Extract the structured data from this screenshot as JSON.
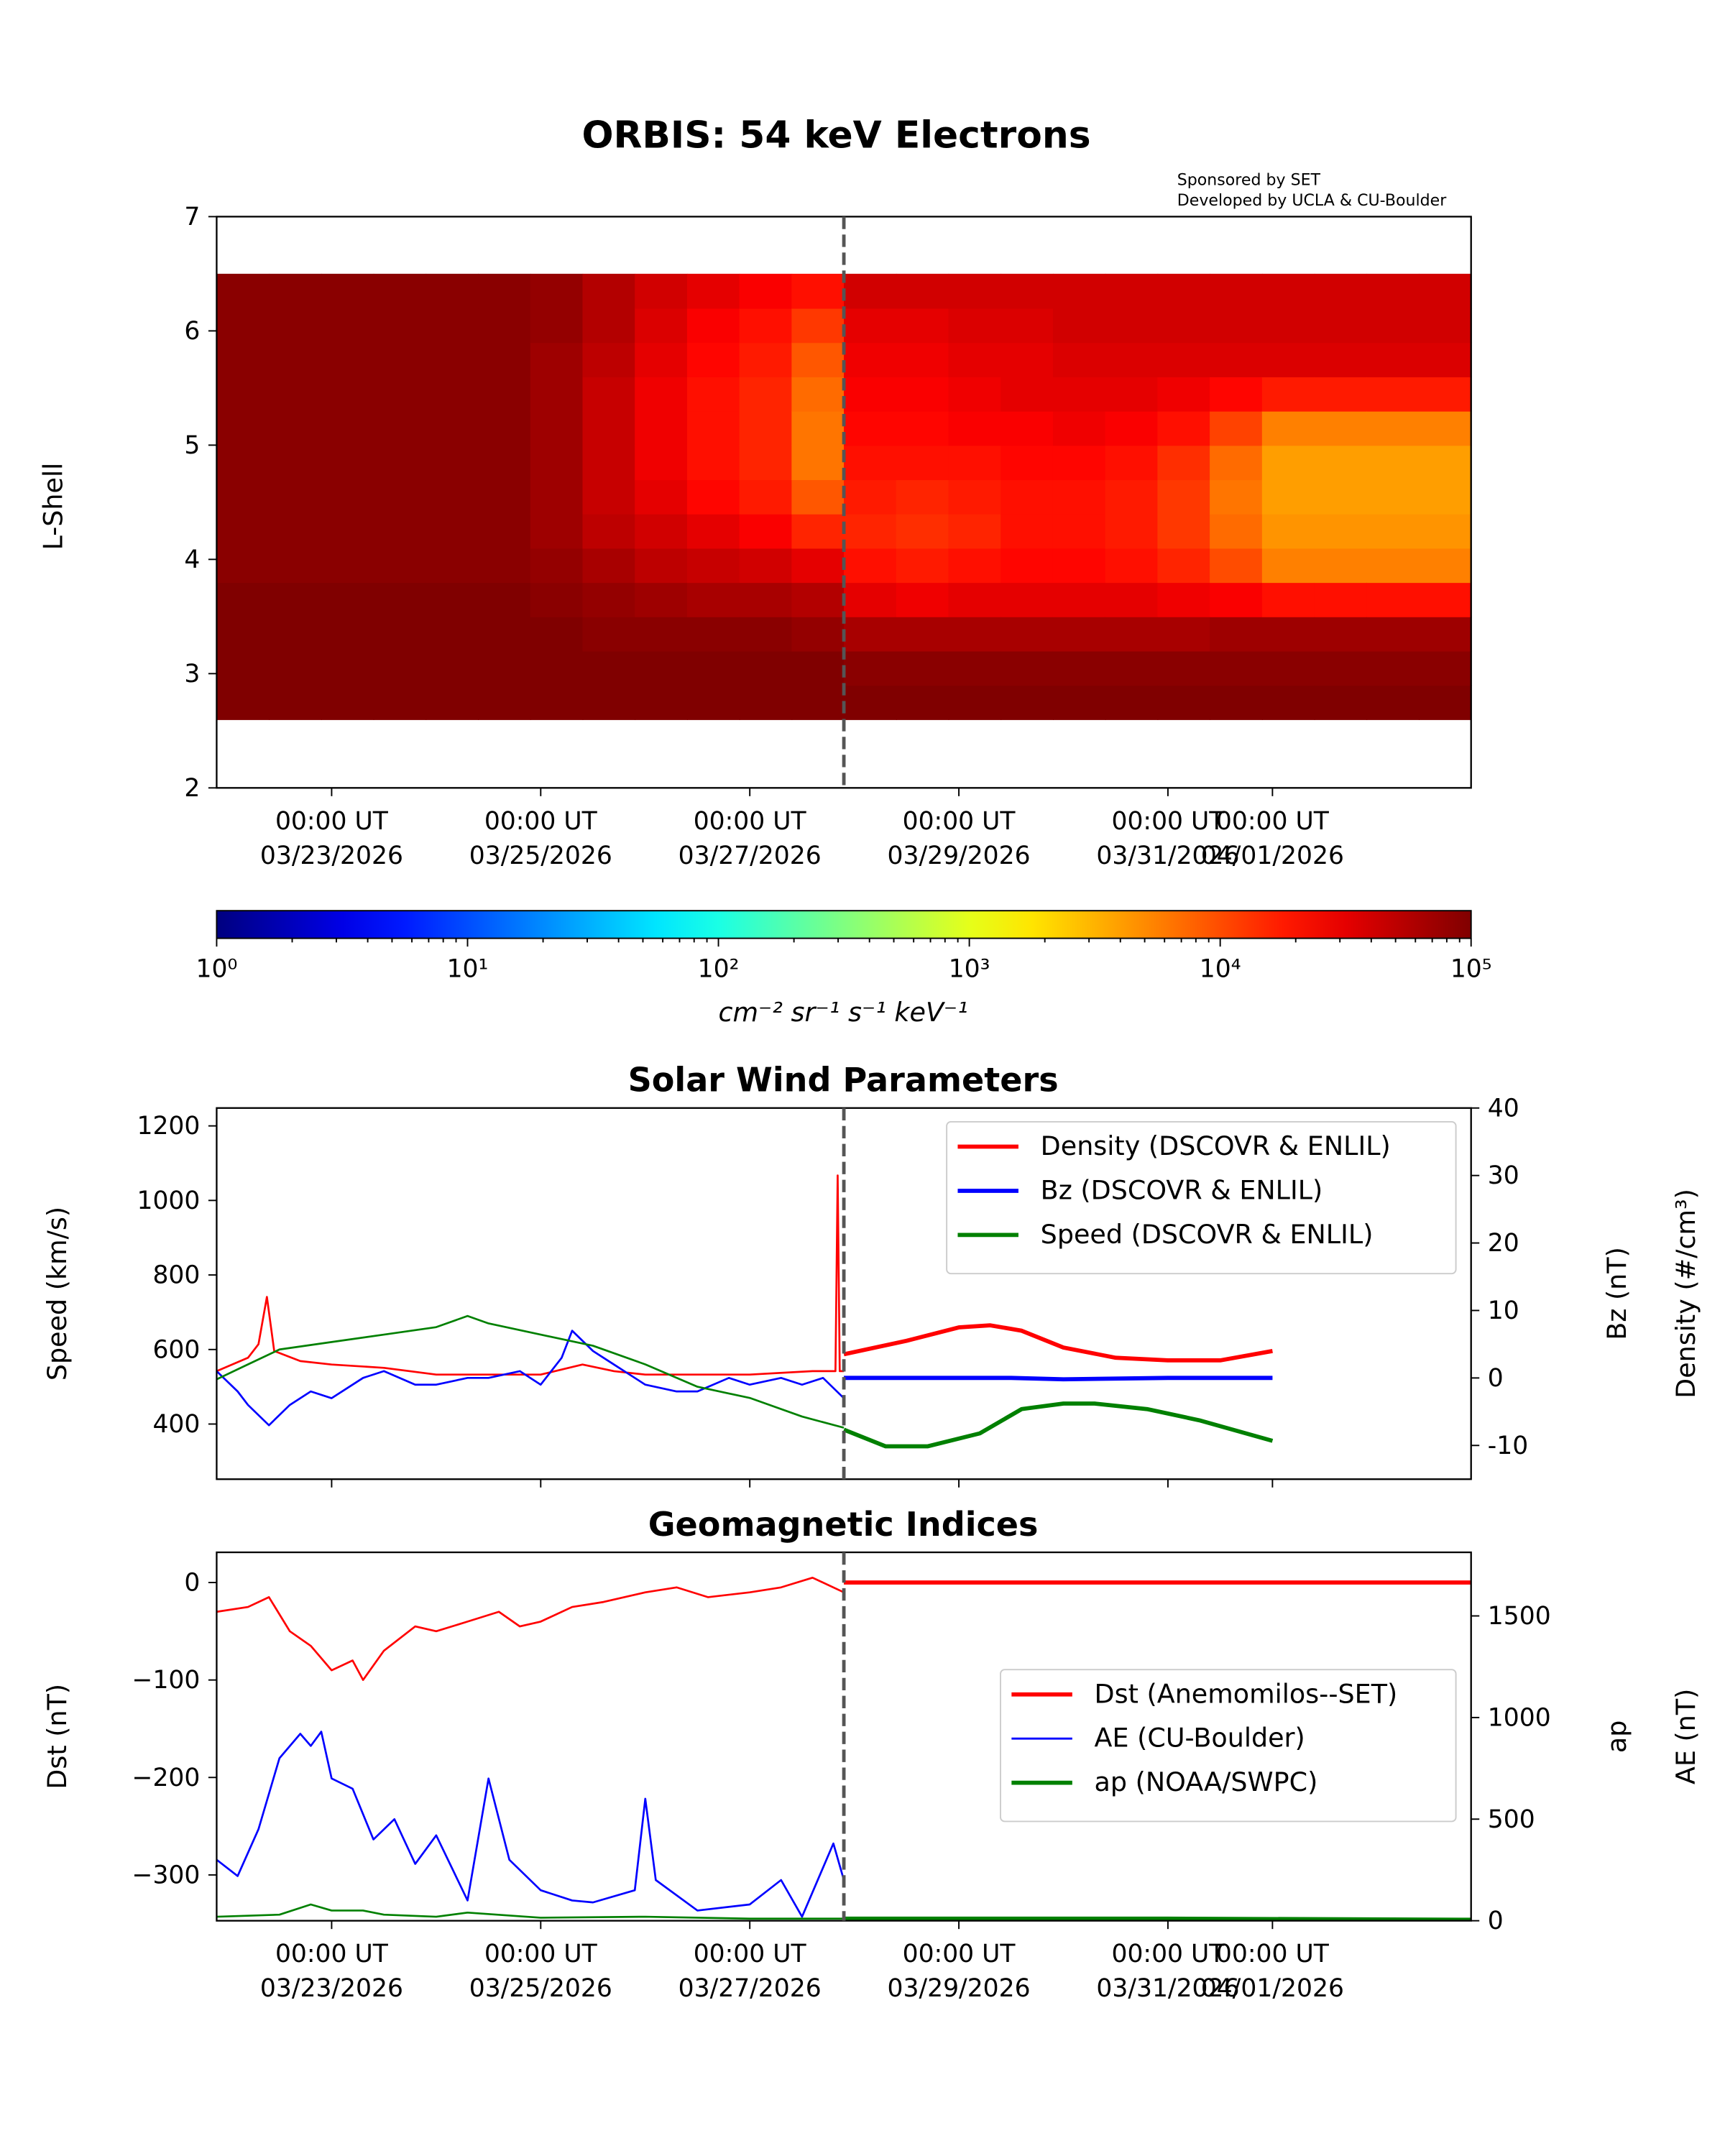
{
  "chart_data": [
    {
      "type": "heatmap",
      "title": "ORBIS: 54 keV Electrons",
      "credits": [
        "Sponsored by SET",
        "Developed by UCLA & CU-Boulder"
      ],
      "ylabel": "L-Shell",
      "ylim": [
        2,
        7
      ],
      "yticks": [
        "2",
        "3",
        "4",
        "5",
        "6",
        "7"
      ],
      "xlim_days_from_03_23": [
        -1.1,
        10.9
      ],
      "xticks": [
        {
          "day": 0,
          "line1": "00:00 UT",
          "line2": "03/23/2026"
        },
        {
          "day": 2,
          "line1": "00:00 UT",
          "line2": "03/25/2026"
        },
        {
          "day": 4,
          "line1": "00:00 UT",
          "line2": "03/27/2026"
        },
        {
          "day": 6,
          "line1": "00:00 UT",
          "line2": "03/29/2026"
        },
        {
          "day": 8,
          "line1": "00:00 UT",
          "line2": "03/31/2026"
        },
        {
          "day": 9,
          "line1": "00:00 UT",
          "line2": "04/01/2026"
        }
      ],
      "now_marker_day": 4.9,
      "time_bin_start": -1.1,
      "time_bin_width_days": 0.5,
      "l_bin_edges": [
        2.6,
        2.9,
        3.2,
        3.5,
        3.8,
        4.1,
        4.4,
        4.7,
        5.0,
        5.3,
        5.6,
        5.9,
        6.2,
        6.5
      ],
      "log10_flux": [
        [
          5,
          5,
          5,
          5,
          4.95,
          4.95,
          4.95,
          4.95,
          4.95,
          4.95,
          4.95,
          4.95,
          4.95
        ],
        [
          5,
          5,
          5,
          5,
          4.95,
          4.95,
          4.95,
          4.95,
          4.95,
          4.95,
          4.95,
          4.95,
          4.95
        ],
        [
          5,
          5,
          5,
          5,
          4.95,
          4.95,
          4.95,
          4.95,
          4.95,
          4.95,
          4.95,
          4.95,
          4.95
        ],
        [
          5,
          5,
          5,
          5,
          4.95,
          4.95,
          4.95,
          4.95,
          4.95,
          4.95,
          4.95,
          4.95,
          4.95
        ],
        [
          5,
          5,
          5,
          5,
          4.95,
          4.95,
          4.95,
          4.95,
          4.95,
          4.95,
          4.95,
          4.95,
          4.95
        ],
        [
          5,
          5,
          5,
          5,
          4.95,
          4.95,
          4.95,
          4.95,
          4.95,
          4.95,
          4.95,
          4.95,
          4.95
        ],
        [
          5,
          5,
          5,
          4.95,
          4.9,
          4.85,
          4.85,
          4.85,
          4.85,
          4.85,
          4.85,
          4.9,
          4.9
        ],
        [
          5,
          5,
          4.95,
          4.9,
          4.8,
          4.7,
          4.65,
          4.65,
          4.65,
          4.65,
          4.7,
          4.75,
          4.75
        ],
        [
          5,
          5,
          4.95,
          4.85,
          4.7,
          4.6,
          4.5,
          4.45,
          4.45,
          4.45,
          4.5,
          4.55,
          4.6
        ],
        [
          5,
          5,
          4.95,
          4.8,
          4.65,
          4.5,
          4.35,
          4.3,
          4.3,
          4.3,
          4.35,
          4.4,
          4.5
        ],
        [
          5,
          5,
          4.95,
          4.8,
          4.6,
          4.4,
          4.25,
          4.2,
          4.2,
          4.2,
          4.25,
          4.3,
          4.4
        ],
        [
          5,
          5,
          4.9,
          4.75,
          4.5,
          4.2,
          3.95,
          3.8,
          3.8,
          3.85,
          3.95,
          4.1,
          4.3
        ],
        [
          5,
          4.95,
          4.8,
          4.5,
          4.3,
          4.2,
          4.25,
          4.3,
          4.35,
          4.4,
          4.45,
          4.5,
          4.6
        ],
        [
          5,
          4.95,
          4.8,
          4.45,
          4.25,
          4.15,
          4.2,
          4.3,
          4.35,
          4.4,
          4.45,
          4.5,
          4.6
        ],
        [
          5,
          4.95,
          4.8,
          4.5,
          4.3,
          4.2,
          4.25,
          4.3,
          4.4,
          4.45,
          4.5,
          4.55,
          4.6
        ],
        [
          5,
          4.95,
          4.8,
          4.5,
          4.35,
          4.3,
          4.3,
          4.35,
          4.4,
          4.5,
          4.5,
          4.55,
          4.6
        ],
        [
          5,
          4.95,
          4.8,
          4.5,
          4.35,
          4.3,
          4.3,
          4.35,
          4.45,
          4.5,
          4.55,
          4.6,
          4.6
        ],
        [
          5,
          4.95,
          4.8,
          4.5,
          4.3,
          4.25,
          4.25,
          4.3,
          4.4,
          4.5,
          4.55,
          4.6,
          4.6
        ],
        [
          5,
          4.95,
          4.8,
          4.45,
          4.2,
          4.1,
          4.1,
          4.15,
          4.3,
          4.45,
          4.55,
          4.6,
          4.6
        ],
        [
          5,
          4.95,
          4.85,
          4.4,
          4.0,
          3.85,
          3.8,
          3.85,
          4.05,
          4.35,
          4.55,
          4.6,
          4.6
        ],
        [
          5,
          4.95,
          4.85,
          4.3,
          3.75,
          3.65,
          3.6,
          3.6,
          3.75,
          4.25,
          4.55,
          4.6,
          4.6
        ],
        [
          5,
          4.95,
          4.85,
          4.3,
          3.75,
          3.65,
          3.6,
          3.6,
          3.75,
          4.25,
          4.55,
          4.6,
          4.6
        ],
        [
          5,
          4.95,
          4.85,
          4.3,
          3.75,
          3.65,
          3.6,
          3.6,
          3.75,
          4.25,
          4.55,
          4.6,
          4.6
        ],
        [
          5,
          4.95,
          4.85,
          4.3,
          3.75,
          3.65,
          3.6,
          3.6,
          3.75,
          4.25,
          4.55,
          4.6,
          4.6
        ]
      ],
      "colorbar": {
        "label": "cm⁻² sr⁻¹ s⁻¹ keV⁻¹",
        "range_log10": [
          0,
          5
        ],
        "ticks": [
          "10⁰",
          "10¹",
          "10²",
          "10³",
          "10⁴",
          "10⁵"
        ]
      }
    },
    {
      "type": "line",
      "title": "Solar Wind Parameters",
      "ylabel_left": "Speed (km/s)",
      "ylabel_right_1": "Bz (nT)",
      "ylabel_right_2": "Density (#/cm³)",
      "ylim_left": [
        252,
        1248
      ],
      "ylim_right": [
        -15,
        40
      ],
      "yticks_left": [
        400,
        600,
        800,
        1000,
        1200
      ],
      "yticks_right": [
        -10,
        0,
        10,
        20,
        30,
        40
      ],
      "legend_position": "top-right",
      "series": [
        {
          "name": "Density (DSCOVR & ENLIL)",
          "color": "#ff0000",
          "axis": "right",
          "observed": [
            [
              -1.1,
              1
            ],
            [
              -0.8,
              3
            ],
            [
              -0.7,
              5
            ],
            [
              -0.62,
              12
            ],
            [
              -0.55,
              4
            ],
            [
              -0.3,
              2.5
            ],
            [
              0,
              2
            ],
            [
              0.5,
              1.5
            ],
            [
              1,
              0.5
            ],
            [
              1.5,
              0.5
            ],
            [
              2,
              0.5
            ],
            [
              2.4,
              2
            ],
            [
              2.7,
              1
            ],
            [
              3,
              0.5
            ],
            [
              4,
              0.5
            ],
            [
              4.6,
              1
            ],
            [
              4.82,
              1
            ],
            [
              4.84,
              30
            ],
            [
              4.86,
              1
            ],
            [
              4.9,
              1
            ]
          ],
          "forecast": [
            [
              4.9,
              3.5
            ],
            [
              5.5,
              5.5
            ],
            [
              6,
              7.5
            ],
            [
              6.3,
              7.8
            ],
            [
              6.6,
              7
            ],
            [
              7,
              4.5
            ],
            [
              7.5,
              3
            ],
            [
              8,
              2.6
            ],
            [
              8.5,
              2.6
            ],
            [
              9,
              4
            ]
          ]
        },
        {
          "name": "Bz (DSCOVR & ENLIL)",
          "color": "#0000ff",
          "axis": "right",
          "observed": [
            [
              -1.1,
              1
            ],
            [
              -0.9,
              -2
            ],
            [
              -0.8,
              -4
            ],
            [
              -0.6,
              -7
            ],
            [
              -0.4,
              -4
            ],
            [
              -0.2,
              -2
            ],
            [
              0,
              -3
            ],
            [
              0.3,
              0
            ],
            [
              0.5,
              1
            ],
            [
              0.8,
              -1
            ],
            [
              1,
              -1
            ],
            [
              1.3,
              0
            ],
            [
              1.5,
              0
            ],
            [
              1.8,
              1
            ],
            [
              2,
              -1
            ],
            [
              2.2,
              3
            ],
            [
              2.3,
              7
            ],
            [
              2.5,
              4
            ],
            [
              2.7,
              2
            ],
            [
              3,
              -1
            ],
            [
              3.3,
              -2
            ],
            [
              3.5,
              -2
            ],
            [
              3.8,
              0
            ],
            [
              4,
              -1
            ],
            [
              4.3,
              0
            ],
            [
              4.5,
              -1
            ],
            [
              4.7,
              0
            ],
            [
              4.9,
              -3
            ]
          ],
          "forecast": [
            [
              4.9,
              0
            ],
            [
              6,
              0
            ],
            [
              6.5,
              0
            ],
            [
              7,
              -0.2
            ],
            [
              8,
              0
            ],
            [
              9,
              0
            ]
          ]
        },
        {
          "name": "Speed (DSCOVR & ENLIL)",
          "color": "#008000",
          "axis": "left",
          "observed": [
            [
              -1.1,
              520
            ],
            [
              -0.8,
              560
            ],
            [
              -0.5,
              600
            ],
            [
              0,
              620
            ],
            [
              0.5,
              640
            ],
            [
              1,
              660
            ],
            [
              1.3,
              690
            ],
            [
              1.5,
              670
            ],
            [
              2,
              640
            ],
            [
              2.5,
              610
            ],
            [
              3,
              560
            ],
            [
              3.5,
              500
            ],
            [
              4,
              470
            ],
            [
              4.5,
              420
            ],
            [
              4.9,
              390
            ]
          ],
          "forecast": [
            [
              4.9,
              385
            ],
            [
              5.3,
              340
            ],
            [
              5.7,
              340
            ],
            [
              6.2,
              375
            ],
            [
              6.6,
              440
            ],
            [
              7,
              455
            ],
            [
              7.3,
              455
            ],
            [
              7.8,
              440
            ],
            [
              8.3,
              410
            ],
            [
              9,
              355
            ]
          ]
        }
      ]
    },
    {
      "type": "line",
      "title": "Geomagnetic Indices",
      "ylabel_left": "Dst (nT)",
      "ylabel_right_1": "ap",
      "ylabel_right_2": "AE (nT)",
      "ylim_left": [
        -347,
        31
      ],
      "ylim_right": [
        0,
        1813
      ],
      "yticks_left": [
        -300,
        -200,
        -100,
        0
      ],
      "yticks_left_labels": [
        "−300",
        "−200",
        "−100",
        "0"
      ],
      "yticks_right": [
        0,
        500,
        1000,
        1500
      ],
      "legend_position": "center-right",
      "series": [
        {
          "name": "Dst (Anemomilos--SET)",
          "color": "#ff0000",
          "axis": "left",
          "observed": [
            [
              -1.1,
              -30
            ],
            [
              -0.8,
              -25
            ],
            [
              -0.6,
              -15
            ],
            [
              -0.4,
              -50
            ],
            [
              -0.2,
              -65
            ],
            [
              0,
              -90
            ],
            [
              0.2,
              -80
            ],
            [
              0.3,
              -100
            ],
            [
              0.5,
              -70
            ],
            [
              0.8,
              -45
            ],
            [
              1,
              -50
            ],
            [
              1.3,
              -40
            ],
            [
              1.6,
              -30
            ],
            [
              1.8,
              -45
            ],
            [
              2,
              -40
            ],
            [
              2.3,
              -25
            ],
            [
              2.6,
              -20
            ],
            [
              3,
              -10
            ],
            [
              3.3,
              -5
            ],
            [
              3.6,
              -15
            ],
            [
              4,
              -10
            ],
            [
              4.3,
              -5
            ],
            [
              4.6,
              5
            ],
            [
              4.9,
              -10
            ]
          ],
          "forecast": [
            [
              4.9,
              0
            ],
            [
              10.9,
              0
            ]
          ]
        },
        {
          "name": "AE (CU-Boulder)",
          "color": "#0000ff",
          "axis": "right",
          "observed": [
            [
              -1.1,
              300
            ],
            [
              -0.9,
              220
            ],
            [
              -0.7,
              450
            ],
            [
              -0.5,
              800
            ],
            [
              -0.3,
              920
            ],
            [
              -0.2,
              860
            ],
            [
              -0.1,
              930
            ],
            [
              0,
              700
            ],
            [
              0.2,
              650
            ],
            [
              0.4,
              400
            ],
            [
              0.6,
              500
            ],
            [
              0.8,
              280
            ],
            [
              1,
              420
            ],
            [
              1.3,
              100
            ],
            [
              1.5,
              700
            ],
            [
              1.7,
              300
            ],
            [
              2,
              150
            ],
            [
              2.3,
              100
            ],
            [
              2.5,
              90
            ],
            [
              2.9,
              150
            ],
            [
              3,
              600
            ],
            [
              3.1,
              200
            ],
            [
              3.5,
              50
            ],
            [
              4,
              80
            ],
            [
              4.3,
              200
            ],
            [
              4.5,
              20
            ],
            [
              4.8,
              380
            ],
            [
              4.9,
              200
            ]
          ],
          "forecast": []
        },
        {
          "name": "ap (NOAA/SWPC)",
          "color": "#008000",
          "axis": "right",
          "observed": [
            [
              -1.1,
              20
            ],
            [
              -0.5,
              30
            ],
            [
              -0.2,
              80
            ],
            [
              0,
              50
            ],
            [
              0.3,
              50
            ],
            [
              0.5,
              30
            ],
            [
              1,
              20
            ],
            [
              1.3,
              40
            ],
            [
              2,
              15
            ],
            [
              3,
              20
            ],
            [
              4,
              10
            ],
            [
              4.9,
              10
            ]
          ],
          "forecast": [
            [
              4.9,
              10
            ],
            [
              8,
              10
            ],
            [
              10.9,
              5
            ]
          ]
        }
      ]
    }
  ]
}
